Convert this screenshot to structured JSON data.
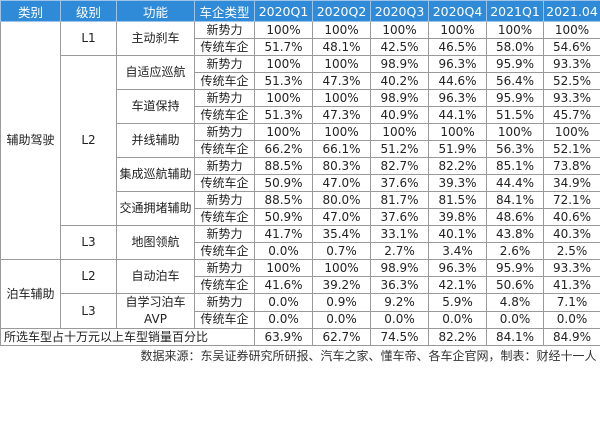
{
  "header": [
    "类别",
    "级别",
    "功能",
    "车企类型",
    "2020Q1",
    "2020Q2",
    "2020Q3",
    "2020Q4",
    "2021Q1",
    "2021.04"
  ],
  "categories": [
    {
      "name": "辅助驾驶",
      "levels": [
        {
          "name": "L1",
          "functions": [
            {
              "name": "主动刹车",
              "rows": [
                {
                  "type": "新势力",
                  "values": [
                    "100%",
                    "100%",
                    "100%",
                    "100%",
                    "100%",
                    "100%"
                  ]
                },
                {
                  "type": "传统车企",
                  "values": [
                    "51.7%",
                    "48.1%",
                    "42.5%",
                    "46.5%",
                    "58.0%",
                    "54.6%"
                  ]
                }
              ]
            }
          ]
        },
        {
          "name": "L2",
          "functions": [
            {
              "name": "自适应巡航",
              "rows": [
                {
                  "type": "新势力",
                  "values": [
                    "100%",
                    "100%",
                    "98.9%",
                    "96.3%",
                    "95.9%",
                    "93.3%"
                  ]
                },
                {
                  "type": "传统车企",
                  "values": [
                    "51.3%",
                    "47.3%",
                    "40.2%",
                    "44.6%",
                    "56.4%",
                    "52.5%"
                  ]
                }
              ]
            },
            {
              "name": "车道保持",
              "rows": [
                {
                  "type": "新势力",
                  "values": [
                    "100%",
                    "100%",
                    "98.9%",
                    "96.3%",
                    "95.9%",
                    "93.3%"
                  ]
                },
                {
                  "type": "传统车企",
                  "values": [
                    "51.3%",
                    "47.3%",
                    "40.9%",
                    "44.1%",
                    "51.5%",
                    "45.7%"
                  ]
                }
              ]
            },
            {
              "name": "并线辅助",
              "rows": [
                {
                  "type": "新势力",
                  "values": [
                    "100%",
                    "100%",
                    "100%",
                    "100%",
                    "100%",
                    "100%"
                  ]
                },
                {
                  "type": "传统车企",
                  "values": [
                    "66.2%",
                    "66.1%",
                    "51.2%",
                    "51.9%",
                    "56.3%",
                    "52.1%"
                  ]
                }
              ]
            },
            {
              "name": "集成巡航辅助",
              "rows": [
                {
                  "type": "新势力",
                  "values": [
                    "88.5%",
                    "80.3%",
                    "82.7%",
                    "82.2%",
                    "85.1%",
                    "73.8%"
                  ]
                },
                {
                  "type": "传统车企",
                  "values": [
                    "50.9%",
                    "47.0%",
                    "37.6%",
                    "39.3%",
                    "44.4%",
                    "34.9%"
                  ]
                }
              ]
            },
            {
              "name": "交通拥堵辅助",
              "rows": [
                {
                  "type": "新势力",
                  "values": [
                    "88.5%",
                    "80.0%",
                    "81.7%",
                    "81.5%",
                    "84.1%",
                    "72.1%"
                  ]
                },
                {
                  "type": "传统车企",
                  "values": [
                    "50.9%",
                    "47.0%",
                    "37.6%",
                    "39.8%",
                    "48.6%",
                    "40.6%"
                  ]
                }
              ]
            }
          ]
        },
        {
          "name": "L3",
          "functions": [
            {
              "name": "地图领航",
              "rows": [
                {
                  "type": "新势力",
                  "values": [
                    "41.7%",
                    "35.4%",
                    "33.1%",
                    "40.1%",
                    "43.8%",
                    "40.3%"
                  ]
                },
                {
                  "type": "传统车企",
                  "values": [
                    "0.0%",
                    "0.7%",
                    "2.7%",
                    "3.4%",
                    "2.6%",
                    "2.5%"
                  ]
                }
              ]
            }
          ]
        }
      ]
    },
    {
      "name": "泊车辅助",
      "levels": [
        {
          "name": "L2",
          "functions": [
            {
              "name": "自动泊车",
              "rows": [
                {
                  "type": "新势力",
                  "values": [
                    "100%",
                    "100%",
                    "98.9%",
                    "96.3%",
                    "95.9%",
                    "93.3%"
                  ]
                },
                {
                  "type": "传统车企",
                  "values": [
                    "41.6%",
                    "39.2%",
                    "36.3%",
                    "42.1%",
                    "50.6%",
                    "41.3%"
                  ]
                }
              ]
            }
          ]
        },
        {
          "name": "L3",
          "functions": [
            {
              "name": "自学习泊车AVP",
              "rows": [
                {
                  "type": "新势力",
                  "values": [
                    "0.0%",
                    "0.9%",
                    "9.2%",
                    "5.9%",
                    "4.8%",
                    "7.1%"
                  ]
                },
                {
                  "type": "传统车企",
                  "values": [
                    "0.0%",
                    "0.0%",
                    "0.0%",
                    "0.0%",
                    "0.0%",
                    "0.0%"
                  ]
                }
              ]
            }
          ]
        }
      ]
    }
  ],
  "summary": {
    "label": "所选车型占十万元以上车型销量百分比",
    "values": [
      "63.9%",
      "62.7%",
      "74.5%",
      "82.2%",
      "84.1%",
      "84.9%"
    ]
  },
  "source": "数据来源：东吴证券研究所研报、汽车之家、懂车帝、各车企官网，制表：财经十一人"
}
